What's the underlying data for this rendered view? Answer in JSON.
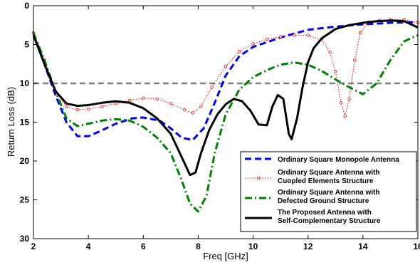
{
  "chart_data": {
    "type": "line",
    "title": "",
    "xlabel": "Freq [GHz]",
    "ylabel": "Return Loss (dB)",
    "xlim": [
      2,
      16
    ],
    "ylim": [
      0,
      30
    ],
    "y_axis_inverted": true,
    "xticks": [
      "2",
      "4",
      "6",
      "8",
      "10",
      "12",
      "14",
      "16"
    ],
    "yticks": [
      "0",
      "5",
      "10",
      "15",
      "20",
      "25",
      "30"
    ],
    "grid": false,
    "legend_position": "lower-right",
    "reference_line": {
      "y": 10,
      "color": "#808080",
      "style": "dashed"
    },
    "series": [
      {
        "name": "Ordinary Square Monopole Antenna",
        "color": "#0000ff",
        "style": "dashed",
        "x": [
          2.0,
          2.4,
          2.8,
          3.2,
          3.6,
          4.0,
          4.4,
          5.0,
          5.6,
          6.0,
          6.6,
          7.0,
          7.4,
          7.8,
          8.2,
          8.6,
          9.0,
          9.5,
          10.0,
          10.5,
          11.0,
          11.5,
          12.0,
          13.0,
          14.0,
          15.0,
          16.0
        ],
        "y": [
          3.5,
          7.5,
          11.5,
          15.0,
          16.8,
          16.8,
          16.2,
          15.2,
          14.5,
          14.4,
          14.8,
          15.8,
          17.0,
          17.3,
          15.8,
          12.5,
          9.0,
          6.5,
          5.3,
          4.7,
          4.1,
          3.6,
          3.1,
          2.7,
          2.4,
          2.2,
          2.1
        ]
      },
      {
        "name": "Ordinary Square Antenna with Cuopled Elements Structure",
        "color": "#ff0000",
        "style": "dotted-circle",
        "x": [
          2.0,
          2.4,
          2.8,
          3.2,
          3.6,
          4.0,
          4.5,
          5.0,
          5.5,
          6.0,
          6.5,
          7.0,
          7.5,
          7.8,
          8.1,
          8.5,
          9.0,
          9.5,
          10.0,
          10.5,
          11.0,
          11.5,
          12.0,
          12.5,
          12.8,
          13.0,
          13.2,
          13.35,
          13.5,
          13.7,
          13.9,
          14.2,
          14.6,
          15.0,
          15.5,
          16.0
        ],
        "y": [
          3.5,
          7.0,
          11.0,
          13.0,
          13.4,
          13.3,
          13.0,
          12.6,
          12.2,
          11.9,
          12.0,
          12.6,
          13.4,
          13.8,
          13.0,
          10.5,
          7.8,
          5.9,
          4.9,
          4.3,
          4.0,
          3.8,
          3.8,
          4.4,
          6.0,
          8.5,
          12.5,
          14.2,
          12.0,
          7.0,
          3.5,
          2.1,
          1.9,
          1.8,
          1.8,
          2.2
        ]
      },
      {
        "name": "Ordinary Square Antenna with Defected Ground Structure",
        "color": "#008000",
        "style": "dashdot",
        "x": [
          2.0,
          2.4,
          2.8,
          3.2,
          3.6,
          4.0,
          4.5,
          5.0,
          5.5,
          6.0,
          6.5,
          7.0,
          7.4,
          7.7,
          8.0,
          8.3,
          8.6,
          9.0,
          9.5,
          10.0,
          10.5,
          11.0,
          11.5,
          12.0,
          12.5,
          13.0,
          13.5,
          14.0,
          14.5,
          15.0,
          15.5,
          16.0
        ],
        "y": [
          3.5,
          7.0,
          11.0,
          14.5,
          15.5,
          15.2,
          14.8,
          14.6,
          14.8,
          15.6,
          17.0,
          19.0,
          22.5,
          25.5,
          26.5,
          24.5,
          19.0,
          14.0,
          10.8,
          9.2,
          8.3,
          7.6,
          7.3,
          7.6,
          8.4,
          9.5,
          10.5,
          11.4,
          10.0,
          7.0,
          4.6,
          3.8
        ]
      },
      {
        "name": "The Proposed Antenna with Self-Complementary Structure",
        "color": "#000000",
        "style": "solid",
        "x": [
          2.0,
          2.4,
          2.8,
          3.2,
          3.6,
          4.0,
          4.5,
          5.0,
          5.5,
          6.0,
          6.5,
          7.0,
          7.4,
          7.7,
          7.9,
          8.1,
          8.4,
          8.7,
          9.0,
          9.3,
          9.6,
          9.9,
          10.2,
          10.5,
          10.7,
          10.9,
          11.1,
          11.3,
          11.4,
          11.6,
          11.8,
          12.0,
          12.2,
          12.5,
          13.0,
          13.5,
          14.0,
          14.5,
          15.0,
          15.5,
          16.0
        ],
        "y": [
          3.8,
          7.5,
          11.0,
          12.6,
          12.9,
          12.8,
          12.5,
          12.3,
          12.5,
          13.2,
          14.5,
          16.5,
          19.5,
          21.8,
          21.5,
          19.0,
          16.0,
          14.0,
          12.7,
          12.0,
          12.3,
          13.5,
          15.3,
          15.4,
          13.0,
          11.5,
          12.0,
          16.5,
          17.2,
          14.5,
          10.5,
          7.3,
          5.5,
          4.2,
          3.0,
          2.5,
          2.2,
          2.0,
          1.9,
          2.0,
          2.8
        ]
      }
    ]
  },
  "legend_lines": [
    [
      "Ordinary Square Monopole Antenna"
    ],
    [
      "Ordinary Square Antenna with",
      "Cuopled Elements Structure"
    ],
    [
      "Ordinary Square Antenna with",
      "Defected Ground Structure"
    ],
    [
      "The Proposed Antenna with",
      "Self-Complementary Structure"
    ]
  ]
}
